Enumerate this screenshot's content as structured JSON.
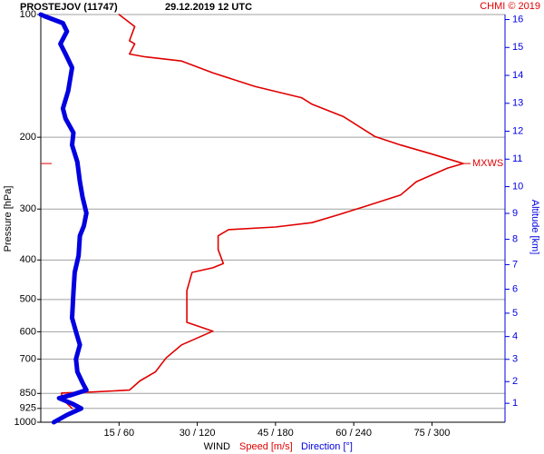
{
  "chart_data": {
    "type": "profile",
    "title": "PROSTEJOV (11747)",
    "subtitle": "29.12.2019 12 UTC",
    "credit": "CHMI © 2019",
    "xlabel": "WIND",
    "ylabel": "Pressure [hPa]",
    "y2label": "Altitude [km]",
    "yscale": "log",
    "y2_scale": "standard-atmosphere",
    "ylim": [
      100,
      1000
    ],
    "yticks": [
      100,
      200,
      300,
      400,
      500,
      600,
      700,
      850,
      925,
      1000
    ],
    "xlim": [
      0,
      89
    ],
    "x2lim": [
      0,
      356
    ],
    "xticks": [
      {
        "value": 15,
        "label": "15 / 60"
      },
      {
        "value": 30,
        "label": "30 / 120"
      },
      {
        "value": 45,
        "label": "45 / 180"
      },
      {
        "value": 60,
        "label": "60 / 240"
      },
      {
        "value": 75,
        "label": "75 / 300"
      }
    ],
    "y2ticks": [
      1,
      2,
      3,
      4,
      5,
      6,
      7,
      8,
      9,
      10,
      11,
      12,
      13,
      14,
      15,
      16
    ],
    "grid": true,
    "series": [
      {
        "name": "Speed [m/s]",
        "color": "#e00000",
        "y": [
          100,
          107,
          116,
          118,
          125,
          127,
          130,
          139,
          150,
          160,
          166,
          178,
          199,
          209,
          220,
          232,
          238,
          257,
          277,
          296,
          310,
          324,
          332,
          337,
          349,
          377,
          408,
          418,
          429,
          476,
          500,
          541,
          569,
          598,
          646,
          696,
          752,
          792,
          834,
          843,
          848,
          873,
          925
        ],
        "values": [
          15,
          18,
          17,
          18,
          17,
          20,
          27,
          33,
          41,
          50,
          52,
          58,
          64,
          69,
          75,
          81,
          78,
          72,
          69,
          62,
          57,
          52,
          45,
          36,
          34,
          34,
          35,
          33,
          29,
          28,
          28,
          28,
          28,
          33,
          27,
          24,
          22,
          19,
          17,
          10,
          4,
          4,
          6
        ]
      },
      {
        "name": "Direction [°]",
        "color": "#0000e0",
        "axis": "x2",
        "y": [
          100,
          101,
          105,
          110,
          118,
          125,
          135,
          154,
          170,
          180,
          195,
          209,
          230,
          257,
          280,
          307,
          330,
          349,
          390,
          429,
          480,
          555,
          600,
          646,
          700,
          752,
          800,
          834,
          860,
          873,
          900,
          925,
          960,
          1000
        ],
        "values": [
          0,
          3,
          17,
          20,
          15,
          19,
          24,
          21,
          17,
          19,
          25,
          24,
          28,
          30,
          32,
          35,
          33,
          30,
          29,
          26,
          25,
          24,
          27,
          30,
          27,
          28,
          32,
          35,
          22,
          14,
          24,
          31,
          20,
          10
        ]
      }
    ],
    "annotations": [
      {
        "text": "MXWS",
        "y": 232,
        "x": 81
      }
    ]
  }
}
